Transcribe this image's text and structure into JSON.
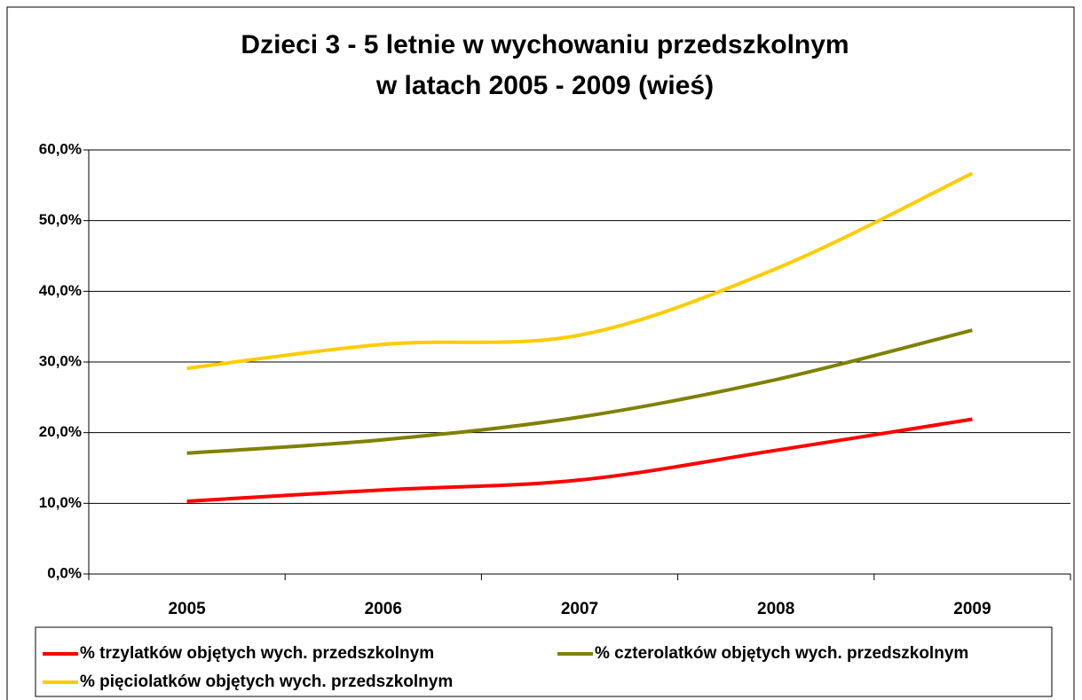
{
  "chart_data": {
    "type": "line",
    "title": "Dzieci 3 - 5 letnie w wychowaniu przedszkolnym",
    "subtitle": "w latach 2005 - 2009 (wieś)",
    "categories": [
      "2005",
      "2006",
      "2007",
      "2008",
      "2009"
    ],
    "series": [
      {
        "name": "% trzylatków objętych wych. przedszkolnym",
        "color": "#ff0000",
        "values": [
          10.3,
          11.9,
          13.3,
          17.5,
          21.9
        ]
      },
      {
        "name": "% czterolatków objętych wych. przedszkolnym",
        "color": "#808000",
        "values": [
          17.1,
          19.0,
          22.2,
          27.5,
          34.5
        ]
      },
      {
        "name": "% pięciolatków objętych wych. przedszkolnym",
        "color": "#ffcc00",
        "values": [
          29.1,
          32.5,
          33.8,
          43.2,
          56.7
        ]
      }
    ],
    "ylim": [
      0,
      60
    ],
    "yticks": [
      {
        "value": 0,
        "label": "0,0%"
      },
      {
        "value": 10,
        "label": "10,0%"
      },
      {
        "value": 20,
        "label": "20,0%"
      },
      {
        "value": 30,
        "label": "30,0%"
      },
      {
        "value": 40,
        "label": "40,0%"
      },
      {
        "value": 50,
        "label": "50,0%"
      },
      {
        "value": 60,
        "label": "60,0%"
      }
    ],
    "grid": true,
    "smooth": true,
    "legend": "bottom"
  }
}
